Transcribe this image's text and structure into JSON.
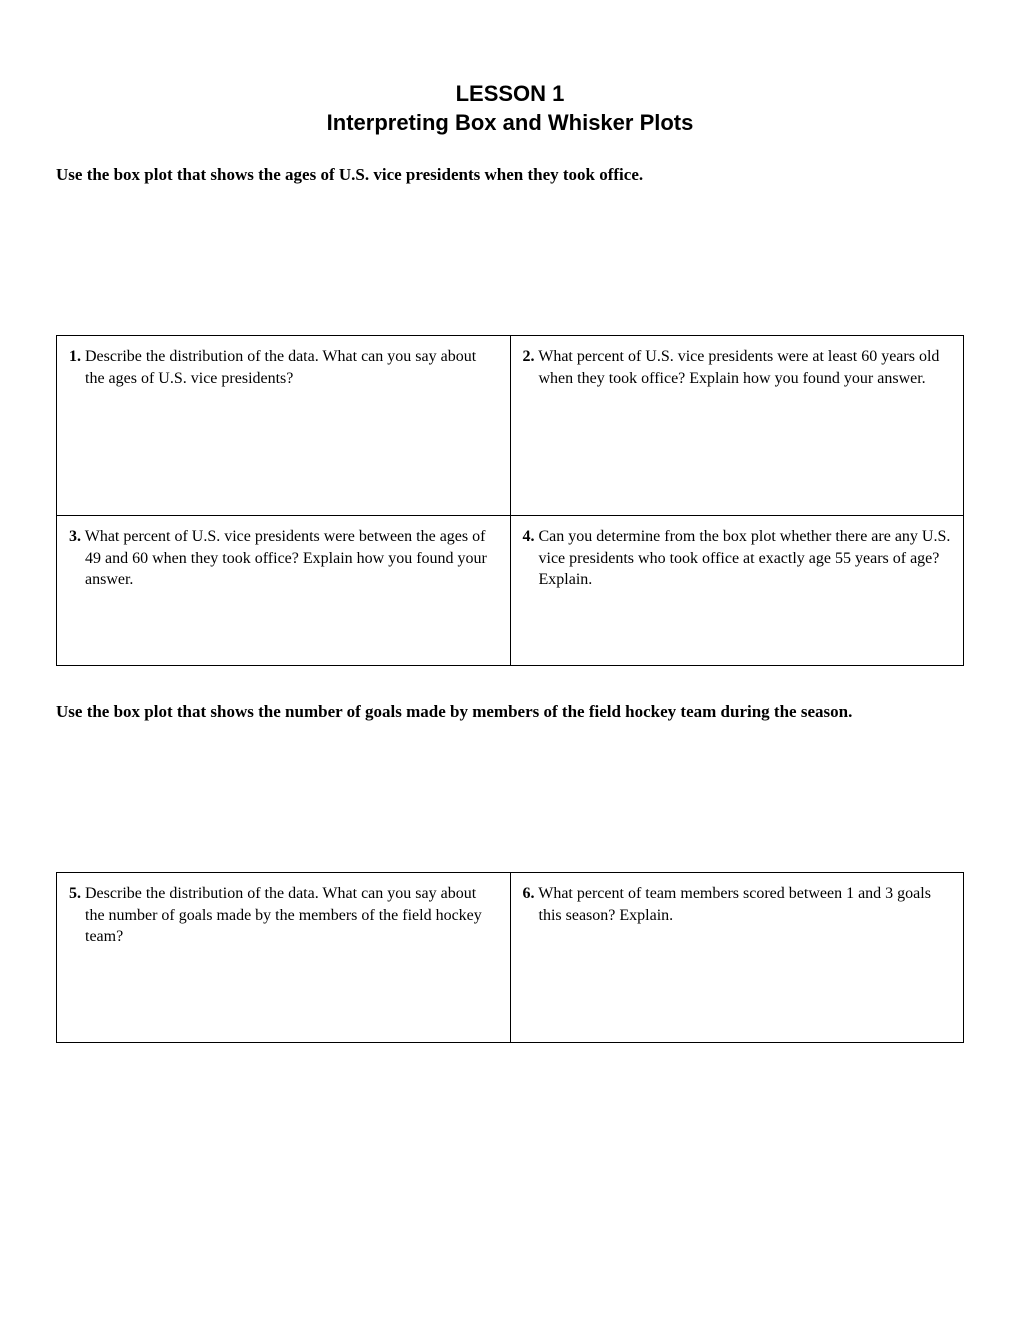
{
  "header": {
    "lesson_number": "LESSON 1",
    "lesson_title": "Interpreting Box and Whisker Plots"
  },
  "section1": {
    "instruction": "Use the box plot that shows the ages of U.S. vice presidents when they took office.",
    "questions": [
      {
        "num": "1.",
        "text": "Describe the distribution of the data. What can you say about the ages of U.S. vice presidents?"
      },
      {
        "num": "2.",
        "text": "What percent of U.S. vice presidents were at least 60 years old when they took office? Explain how you found your answer."
      },
      {
        "num": "3.",
        "text": "What percent of U.S. vice presidents were between the ages of 49 and 60 when they took office? Explain how you found your answer."
      },
      {
        "num": "4.",
        "text": "Can you determine from the box plot whether there are any U.S. vice presidents who took office at exactly age 55 years of age? Explain."
      }
    ]
  },
  "section2": {
    "instruction": "Use the box plot that shows the number of goals made by members of the field hockey team during the season.",
    "questions": [
      {
        "num": "5.",
        "text": "Describe the distribution of the data. What can you say about the number of goals made by the members of the field hockey team?"
      },
      {
        "num": "6.",
        "text": "What percent of team members scored between 1 and 3 goals this season? Explain."
      }
    ]
  }
}
